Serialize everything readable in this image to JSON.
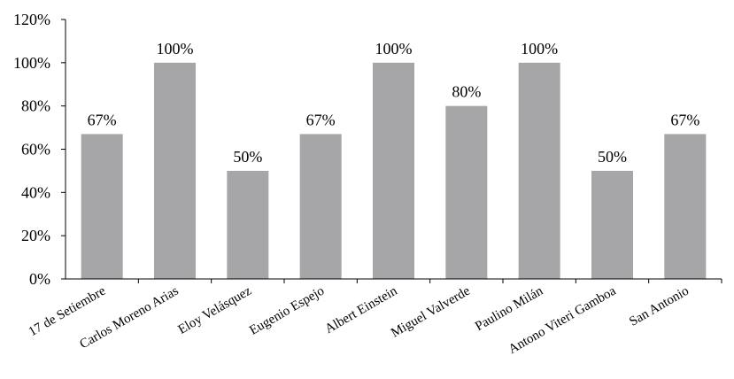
{
  "chart_data": {
    "type": "bar",
    "title": "",
    "xlabel": "",
    "ylabel": "",
    "categories": [
      "17 de Setiembre",
      "Carlos Moreno Arias",
      "Eloy Velásquez",
      "Eugenio Espejo",
      "Albert Einstein",
      "Miguel Valverde",
      "Paulino Milán",
      "Antono Viteri Gamboa",
      "San Antonio"
    ],
    "values": [
      67,
      100,
      50,
      67,
      100,
      80,
      100,
      50,
      67
    ],
    "data_labels": [
      "67%",
      "100%",
      "50%",
      "67%",
      "100%",
      "80%",
      "100%",
      "50%",
      "67%"
    ],
    "y_ticks": [
      0,
      20,
      40,
      60,
      80,
      100,
      120
    ],
    "y_tick_labels": [
      "0%",
      "20%",
      "40%",
      "60%",
      "80%",
      "100%",
      "120%"
    ],
    "ylim": [
      0,
      120
    ],
    "grid": false,
    "legend": "none",
    "bar_color": "#a6a6a8"
  }
}
